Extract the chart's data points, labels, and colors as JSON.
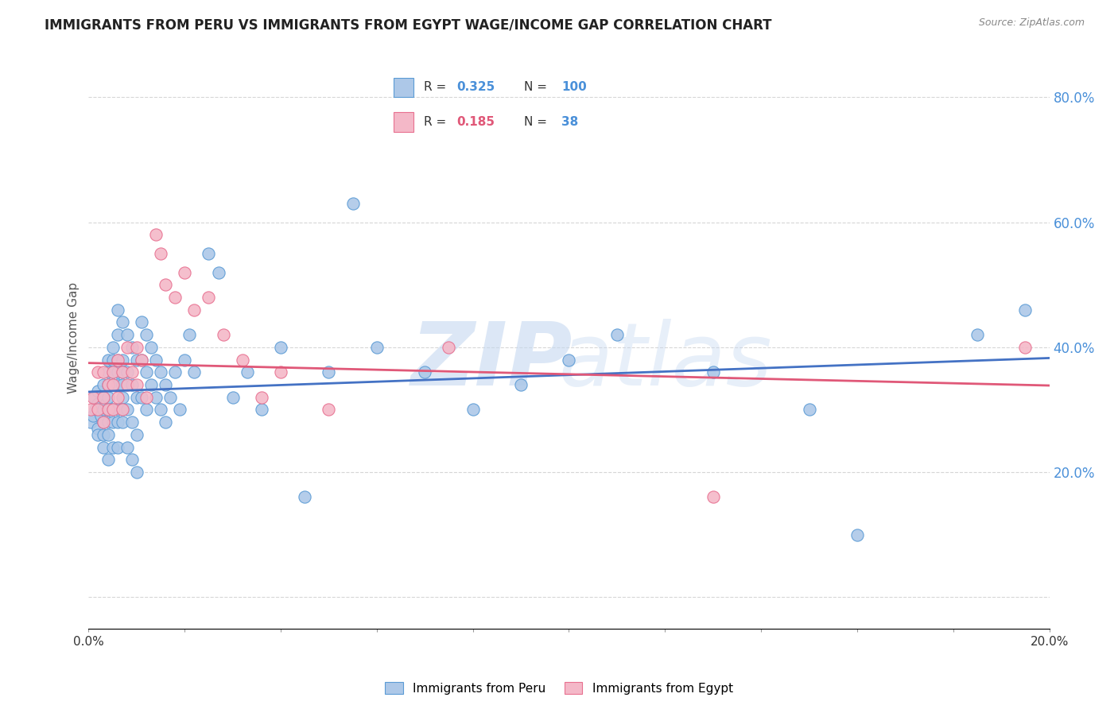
{
  "title": "IMMIGRANTS FROM PERU VS IMMIGRANTS FROM EGYPT WAGE/INCOME GAP CORRELATION CHART",
  "source": "Source: ZipAtlas.com",
  "ylabel": "Wage/Income Gap",
  "xlim": [
    0.0,
    0.2
  ],
  "ylim": [
    -0.05,
    0.88
  ],
  "x_ticks": [
    0.0,
    0.02,
    0.04,
    0.06,
    0.08,
    0.1,
    0.12,
    0.14,
    0.16,
    0.18,
    0.2
  ],
  "y_ticks": [
    0.0,
    0.2,
    0.4,
    0.6,
    0.8
  ],
  "y_tick_labels": [
    "",
    "20.0%",
    "40.0%",
    "60.0%",
    "80.0%"
  ],
  "peru_color": "#adc8e8",
  "peru_edge_color": "#5b9bd5",
  "egypt_color": "#f4b8c8",
  "egypt_edge_color": "#e87090",
  "peru_line_color": "#4472c4",
  "egypt_line_color": "#e05878",
  "watermark_zip_color": "#c5d8f0",
  "watermark_atlas_color": "#c5d8f0",
  "background_color": "#ffffff",
  "peru_R": "0.325",
  "peru_N": "100",
  "egypt_R": "0.185",
  "egypt_N": "38",
  "legend_label_peru": "Immigrants from Peru",
  "legend_label_egypt": "Immigrants from Egypt",
  "peru_scatter_x": [
    0.0005,
    0.001,
    0.0012,
    0.0015,
    0.002,
    0.002,
    0.002,
    0.002,
    0.002,
    0.0025,
    0.003,
    0.003,
    0.003,
    0.003,
    0.003,
    0.003,
    0.003,
    0.0035,
    0.004,
    0.004,
    0.004,
    0.004,
    0.004,
    0.004,
    0.004,
    0.004,
    0.005,
    0.005,
    0.005,
    0.005,
    0.005,
    0.005,
    0.005,
    0.006,
    0.006,
    0.006,
    0.006,
    0.006,
    0.006,
    0.006,
    0.006,
    0.007,
    0.007,
    0.007,
    0.007,
    0.007,
    0.007,
    0.007,
    0.008,
    0.008,
    0.008,
    0.008,
    0.009,
    0.009,
    0.009,
    0.009,
    0.01,
    0.01,
    0.01,
    0.01,
    0.011,
    0.011,
    0.011,
    0.012,
    0.012,
    0.012,
    0.013,
    0.013,
    0.014,
    0.014,
    0.015,
    0.015,
    0.016,
    0.016,
    0.017,
    0.018,
    0.019,
    0.02,
    0.021,
    0.022,
    0.025,
    0.027,
    0.03,
    0.033,
    0.036,
    0.04,
    0.045,
    0.05,
    0.055,
    0.06,
    0.07,
    0.08,
    0.09,
    0.1,
    0.11,
    0.13,
    0.15,
    0.16,
    0.185,
    0.195
  ],
  "peru_scatter_y": [
    0.28,
    0.29,
    0.32,
    0.3,
    0.3,
    0.27,
    0.33,
    0.26,
    0.31,
    0.29,
    0.3,
    0.28,
    0.32,
    0.26,
    0.34,
    0.28,
    0.24,
    0.31,
    0.36,
    0.3,
    0.34,
    0.28,
    0.32,
    0.26,
    0.38,
    0.22,
    0.36,
    0.3,
    0.34,
    0.28,
    0.4,
    0.24,
    0.38,
    0.42,
    0.36,
    0.3,
    0.34,
    0.28,
    0.46,
    0.24,
    0.38,
    0.44,
    0.38,
    0.32,
    0.36,
    0.3,
    0.34,
    0.28,
    0.42,
    0.36,
    0.3,
    0.24,
    0.4,
    0.34,
    0.28,
    0.22,
    0.38,
    0.32,
    0.26,
    0.2,
    0.44,
    0.38,
    0.32,
    0.42,
    0.36,
    0.3,
    0.4,
    0.34,
    0.38,
    0.32,
    0.36,
    0.3,
    0.34,
    0.28,
    0.32,
    0.36,
    0.3,
    0.38,
    0.42,
    0.36,
    0.55,
    0.52,
    0.32,
    0.36,
    0.3,
    0.4,
    0.16,
    0.36,
    0.63,
    0.4,
    0.36,
    0.3,
    0.34,
    0.38,
    0.42,
    0.36,
    0.3,
    0.1,
    0.42,
    0.46
  ],
  "egypt_scatter_x": [
    0.0005,
    0.001,
    0.002,
    0.002,
    0.003,
    0.003,
    0.003,
    0.004,
    0.004,
    0.005,
    0.005,
    0.005,
    0.006,
    0.006,
    0.007,
    0.007,
    0.008,
    0.008,
    0.009,
    0.01,
    0.01,
    0.011,
    0.012,
    0.014,
    0.015,
    0.016,
    0.018,
    0.02,
    0.022,
    0.025,
    0.028,
    0.032,
    0.036,
    0.04,
    0.05,
    0.075,
    0.13,
    0.195
  ],
  "egypt_scatter_y": [
    0.3,
    0.32,
    0.3,
    0.36,
    0.32,
    0.28,
    0.36,
    0.3,
    0.34,
    0.36,
    0.3,
    0.34,
    0.38,
    0.32,
    0.36,
    0.3,
    0.4,
    0.34,
    0.36,
    0.4,
    0.34,
    0.38,
    0.32,
    0.58,
    0.55,
    0.5,
    0.48,
    0.52,
    0.46,
    0.48,
    0.42,
    0.38,
    0.32,
    0.36,
    0.3,
    0.4,
    0.16,
    0.4
  ]
}
